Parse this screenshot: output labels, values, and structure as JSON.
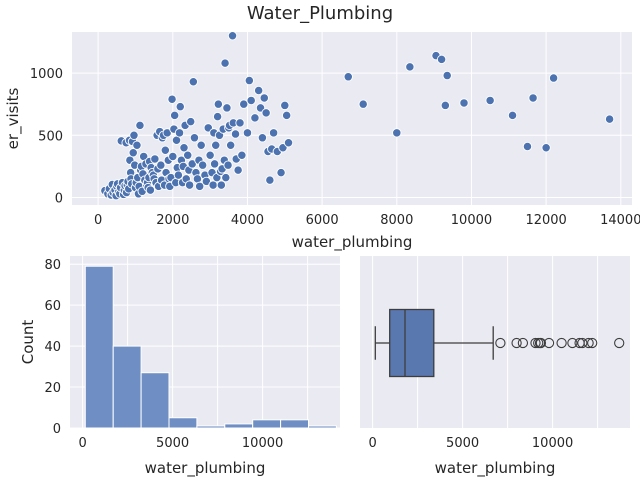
{
  "figure": {
    "title": "Water_Plumbing"
  },
  "colors": {
    "primary": "#4c72b0",
    "hist_fill": "#6f8fc4",
    "box_fill": "#5a78b0",
    "panel": "#eaeaf2",
    "ink": "#3d3d3d"
  },
  "chart_data": [
    {
      "type": "scatter",
      "xlabel": "water_plumbing",
      "ylabel": "er_visits",
      "xlim": [
        -700,
        14300
      ],
      "ylim": [
        -60,
        1330
      ],
      "xticks": [
        0,
        2000,
        4000,
        6000,
        8000,
        10000,
        12000,
        14000
      ],
      "yticks": [
        0,
        500,
        1000
      ],
      "grid": true,
      "points": [
        [
          180,
          55
        ],
        [
          260,
          30
        ],
        [
          300,
          70
        ],
        [
          350,
          20
        ],
        [
          380,
          105
        ],
        [
          400,
          40
        ],
        [
          450,
          60
        ],
        [
          480,
          15
        ],
        [
          500,
          90
        ],
        [
          520,
          110
        ],
        [
          550,
          45
        ],
        [
          580,
          30
        ],
        [
          600,
          80
        ],
        [
          620,
          455
        ],
        [
          650,
          120
        ],
        [
          680,
          25
        ],
        [
          700,
          60
        ],
        [
          720,
          95
        ],
        [
          750,
          440
        ],
        [
          760,
          40
        ],
        [
          780,
          100
        ],
        [
          800,
          130
        ],
        [
          820,
          70
        ],
        [
          840,
          460
        ],
        [
          850,
          300
        ],
        [
          870,
          200
        ],
        [
          880,
          150
        ],
        [
          900,
          110
        ],
        [
          920,
          450
        ],
        [
          940,
          360
        ],
        [
          960,
          500
        ],
        [
          980,
          260
        ],
        [
          1000,
          80
        ],
        [
          1020,
          120
        ],
        [
          1040,
          420
        ],
        [
          1060,
          160
        ],
        [
          1080,
          30
        ],
        [
          1100,
          90
        ],
        [
          1120,
          580
        ],
        [
          1140,
          220
        ],
        [
          1160,
          250
        ],
        [
          1180,
          50
        ],
        [
          1200,
          190
        ],
        [
          1220,
          330
        ],
        [
          1250,
          140
        ],
        [
          1280,
          270
        ],
        [
          1300,
          100
        ],
        [
          1320,
          120
        ],
        [
          1340,
          80
        ],
        [
          1360,
          160
        ],
        [
          1380,
          290
        ],
        [
          1400,
          60
        ],
        [
          1420,
          240
        ],
        [
          1450,
          200
        ],
        [
          1480,
          180
        ],
        [
          1500,
          150
        ],
        [
          1520,
          310
        ],
        [
          1550,
          120
        ],
        [
          1580,
          500
        ],
        [
          1600,
          230
        ],
        [
          1620,
          90
        ],
        [
          1650,
          530
        ],
        [
          1680,
          260
        ],
        [
          1700,
          140
        ],
        [
          1720,
          480
        ],
        [
          1750,
          500
        ],
        [
          1780,
          100
        ],
        [
          1800,
          380
        ],
        [
          1820,
          200
        ],
        [
          1850,
          520
        ],
        [
          1880,
          300
        ],
        [
          1900,
          150
        ],
        [
          1920,
          90
        ],
        [
          1950,
          160
        ],
        [
          1980,
          790
        ],
        [
          2000,
          330
        ],
        [
          2030,
          550
        ],
        [
          2050,
          660
        ],
        [
          2080,
          120
        ],
        [
          2100,
          460
        ],
        [
          2120,
          240
        ],
        [
          2150,
          180
        ],
        [
          2180,
          520
        ],
        [
          2200,
          730
        ],
        [
          2230,
          300
        ],
        [
          2260,
          120
        ],
        [
          2280,
          250
        ],
        [
          2300,
          400
        ],
        [
          2330,
          580
        ],
        [
          2360,
          150
        ],
        [
          2400,
          340
        ],
        [
          2430,
          220
        ],
        [
          2450,
          100
        ],
        [
          2480,
          610
        ],
        [
          2520,
          270
        ],
        [
          2550,
          930
        ],
        [
          2580,
          480
        ],
        [
          2620,
          200
        ],
        [
          2660,
          150
        ],
        [
          2700,
          300
        ],
        [
          2720,
          90
        ],
        [
          2760,
          420
        ],
        [
          2800,
          260
        ],
        [
          2860,
          180
        ],
        [
          2900,
          130
        ],
        [
          2950,
          560
        ],
        [
          3000,
          340
        ],
        [
          3050,
          200
        ],
        [
          3080,
          100
        ],
        [
          3100,
          520
        ],
        [
          3120,
          270
        ],
        [
          3150,
          420
        ],
        [
          3180,
          160
        ],
        [
          3200,
          650
        ],
        [
          3220,
          750
        ],
        [
          3250,
          500
        ],
        [
          3280,
          210
        ],
        [
          3300,
          100
        ],
        [
          3320,
          230
        ],
        [
          3350,
          550
        ],
        [
          3380,
          300
        ],
        [
          3400,
          1080
        ],
        [
          3420,
          160
        ],
        [
          3450,
          720
        ],
        [
          3480,
          260
        ],
        [
          3500,
          560
        ],
        [
          3520,
          580
        ],
        [
          3550,
          420
        ],
        [
          3600,
          1300
        ],
        [
          3620,
          600
        ],
        [
          3680,
          510
        ],
        [
          3700,
          310
        ],
        [
          3750,
          220
        ],
        [
          3800,
          600
        ],
        [
          3850,
          340
        ],
        [
          3900,
          750
        ],
        [
          4000,
          520
        ],
        [
          4050,
          940
        ],
        [
          4100,
          780
        ],
        [
          4200,
          640
        ],
        [
          4300,
          860
        ],
        [
          4350,
          720
        ],
        [
          4400,
          480
        ],
        [
          4450,
          800
        ],
        [
          4500,
          680
        ],
        [
          4550,
          370
        ],
        [
          4600,
          140
        ],
        [
          4650,
          390
        ],
        [
          4700,
          520
        ],
        [
          4800,
          370
        ],
        [
          4900,
          200
        ],
        [
          4950,
          400
        ],
        [
          5000,
          740
        ],
        [
          5050,
          660
        ],
        [
          5100,
          440
        ],
        [
          6700,
          970
        ],
        [
          7100,
          750
        ],
        [
          8000,
          520
        ],
        [
          8350,
          1050
        ],
        [
          9050,
          1140
        ],
        [
          9200,
          1110
        ],
        [
          9300,
          740
        ],
        [
          9350,
          980
        ],
        [
          9800,
          760
        ],
        [
          10500,
          780
        ],
        [
          11100,
          660
        ],
        [
          11500,
          410
        ],
        [
          11650,
          800
        ],
        [
          12000,
          400
        ],
        [
          12200,
          960
        ],
        [
          13700,
          630
        ]
      ]
    },
    {
      "type": "bar",
      "subtype": "histogram",
      "xlabel": "water_plumbing",
      "ylabel": "Count",
      "xlim": [
        -700,
        14300
      ],
      "ylim": [
        0,
        84
      ],
      "xticks": [
        0,
        5000,
        10000
      ],
      "yticks": [
        0,
        20,
        40,
        60,
        80
      ],
      "grid": true,
      "bin_edges": [
        150,
        1700,
        3250,
        4800,
        6350,
        7900,
        9450,
        11000,
        12550,
        14100
      ],
      "values": [
        79,
        40,
        27,
        5,
        1,
        2,
        4,
        4,
        1
      ]
    },
    {
      "type": "box",
      "xlabel": "water_plumbing",
      "xlim": [
        -700,
        14300
      ],
      "xticks": [
        0,
        5000,
        10000
      ],
      "grid": true,
      "whisker_low": 150,
      "q1": 950,
      "median": 1800,
      "q3": 3400,
      "whisker_high": 6700,
      "outliers": [
        7100,
        8000,
        8350,
        9050,
        9200,
        9300,
        9350,
        9800,
        10500,
        11100,
        11500,
        11650,
        12000,
        12200,
        13700
      ]
    }
  ]
}
